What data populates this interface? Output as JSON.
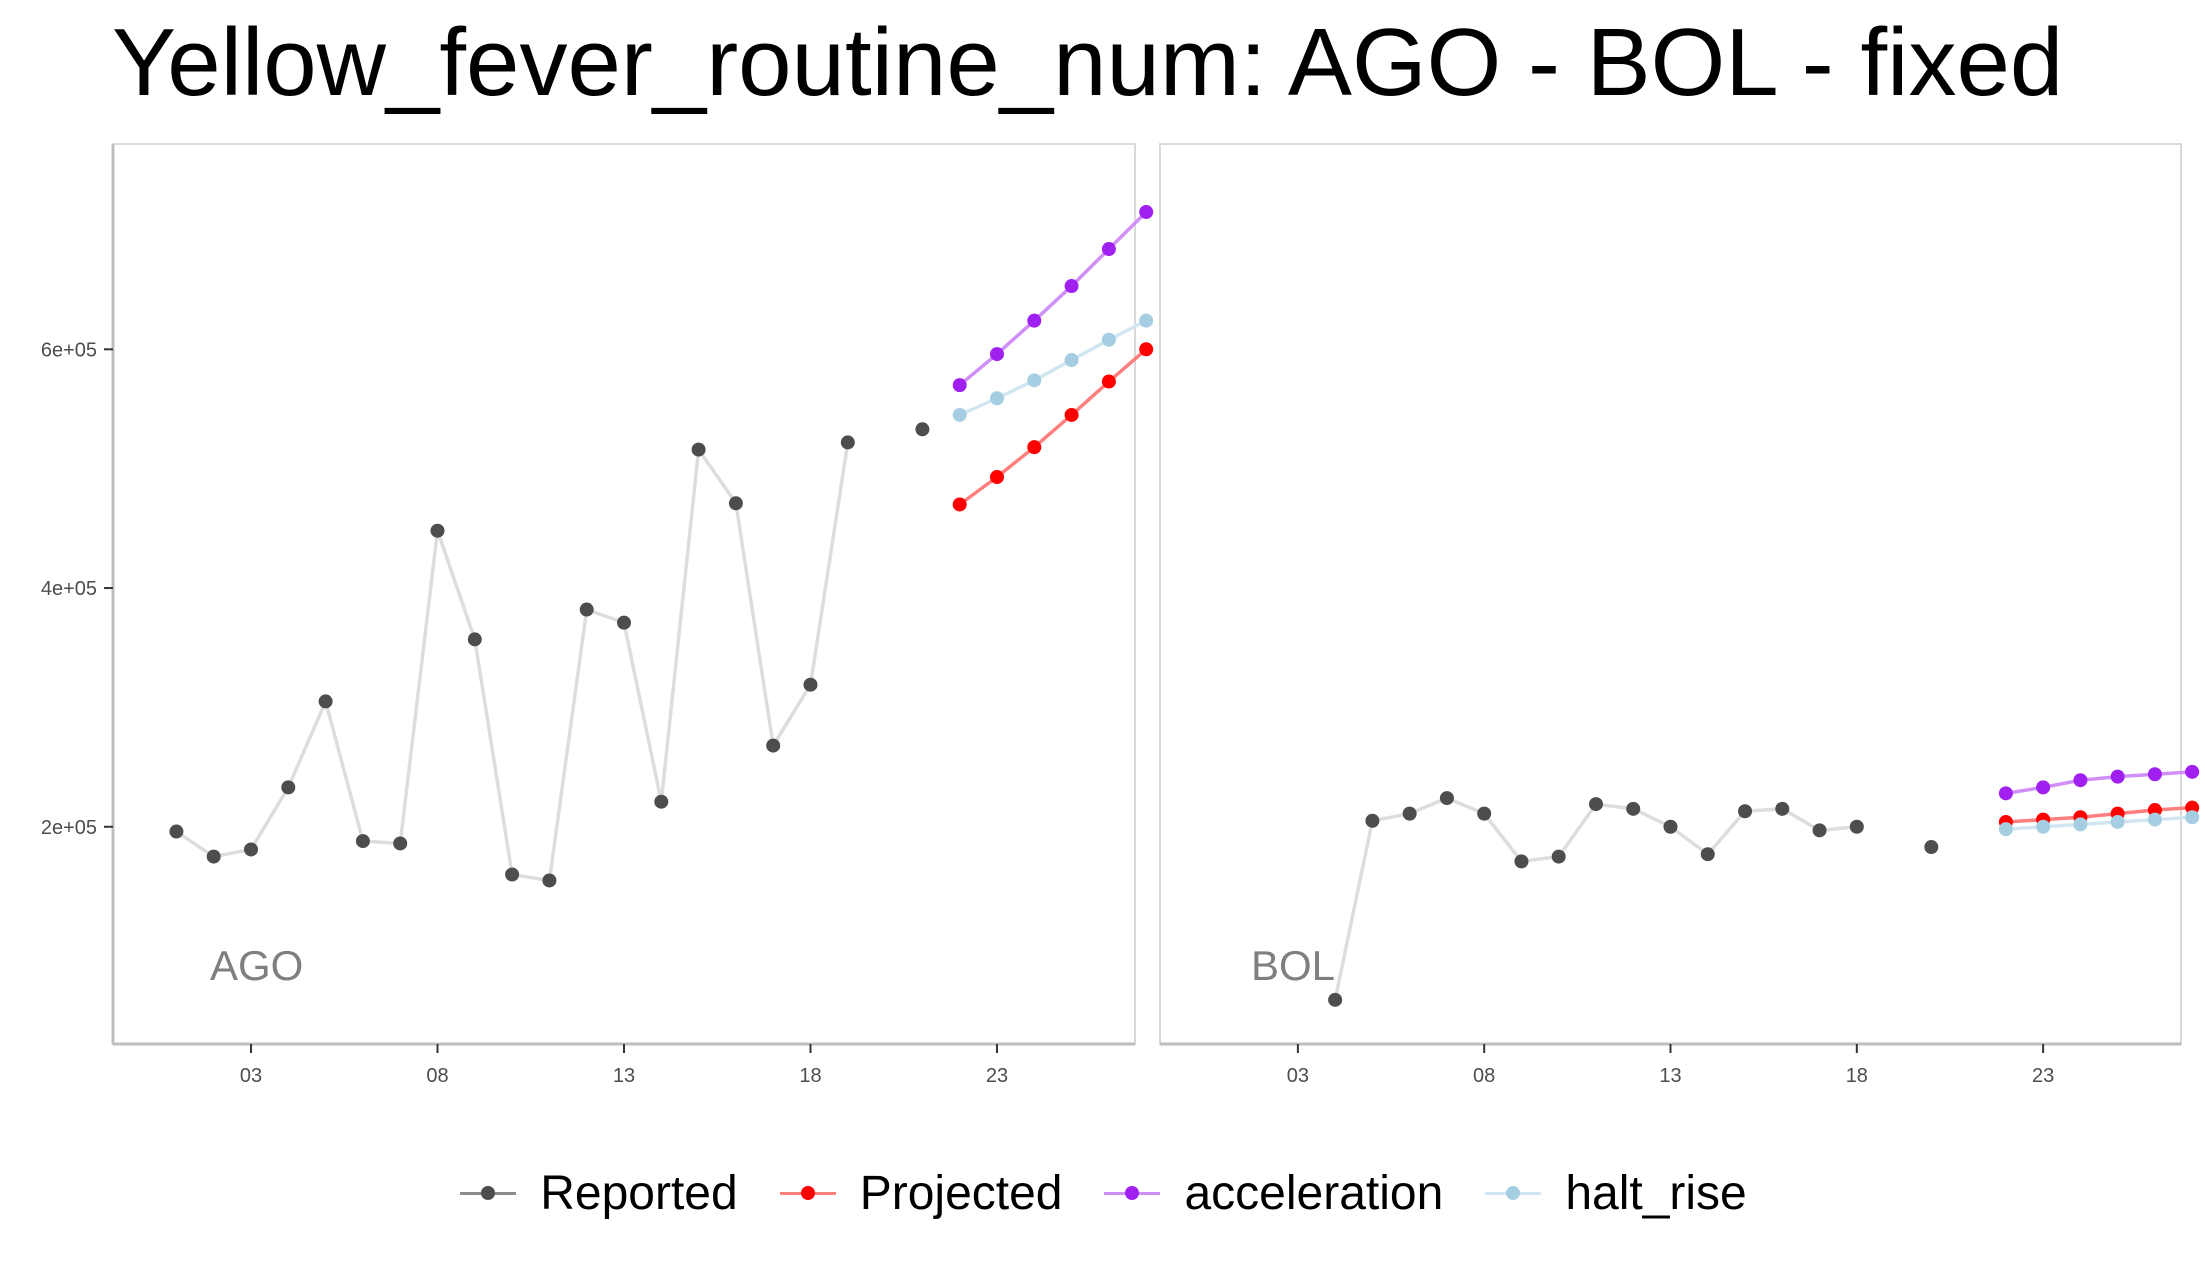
{
  "title": "Yellow_fever_routine_num: AGO - BOL - fixed",
  "colors": {
    "Reported": "#4d4d4d",
    "Reported_line": "#dddddd",
    "Projected": "#ff0000",
    "Projected_line": "#ff7f7f",
    "acceleration": "#a020f0",
    "acceleration_line": "#cf8ff7",
    "halt_rise": "#a6cee3",
    "halt_rise_line": "#d2e6f1"
  },
  "legend": [
    {
      "key": "Reported",
      "label": "Reported"
    },
    {
      "key": "Projected",
      "label": "Projected"
    },
    {
      "key": "acceleration",
      "label": "acceleration"
    },
    {
      "key": "halt_rise",
      "label": "halt_rise"
    }
  ],
  "chart_data": {
    "type": "line",
    "facet_scales": "shared",
    "xlim": [
      -0.7,
      26.7
    ],
    "ylim": [
      18000,
      772000
    ],
    "x_ticks": [
      3,
      8,
      13,
      18,
      23
    ],
    "x_tick_labels": [
      "03",
      "08",
      "13",
      "18",
      "23"
    ],
    "y_ticks": [
      200000,
      400000,
      600000
    ],
    "y_tick_labels": [
      "2e+05",
      "4e+05",
      "6e+05"
    ],
    "panels": [
      {
        "label": "AGO",
        "series": [
          {
            "name": "Reported",
            "x": [
              1,
              2,
              3,
              4,
              5,
              6,
              7,
              8,
              9,
              10,
              11,
              12,
              13,
              14,
              15,
              16,
              17,
              18,
              19,
              20,
              21
            ],
            "y": [
              196000,
              175000,
              181000,
              233000,
              305000,
              188000,
              186000,
              448000,
              357000,
              160000,
              155000,
              382000,
              371000,
              221000,
              516000,
              471000,
              268000,
              319000,
              522000,
              null,
              533000
            ]
          },
          {
            "name": "Projected",
            "x": [
              22,
              23,
              24,
              25,
              26,
              27
            ],
            "y": [
              470000,
              493000,
              518000,
              545000,
              573000,
              600000
            ]
          },
          {
            "name": "acceleration",
            "x": [
              22,
              23,
              24,
              25,
              26,
              27
            ],
            "y": [
              570000,
              596000,
              624000,
              653000,
              684000,
              715000
            ]
          },
          {
            "name": "halt_rise",
            "x": [
              22,
              23,
              24,
              25,
              26,
              27
            ],
            "y": [
              545000,
              559000,
              574000,
              591000,
              608000,
              624000
            ]
          }
        ]
      },
      {
        "label": "BOL",
        "series": [
          {
            "name": "Reported",
            "x": [
              4,
              5,
              6,
              7,
              8,
              9,
              10,
              11,
              12,
              13,
              14,
              15,
              16,
              17,
              18,
              19,
              20,
              21
            ],
            "y": [
              55000,
              205000,
              211000,
              224000,
              211000,
              171000,
              175000,
              219000,
              215000,
              200000,
              177000,
              213000,
              215000,
              197000,
              200000,
              null,
              183000,
              null
            ]
          },
          {
            "name": "Projected",
            "x": [
              22,
              23,
              24,
              25,
              26,
              27
            ],
            "y": [
              204000,
              206000,
              208000,
              211000,
              214000,
              216000
            ]
          },
          {
            "name": "acceleration",
            "x": [
              22,
              23,
              24,
              25,
              26,
              27
            ],
            "y": [
              228000,
              233000,
              239000,
              242000,
              244000,
              246000
            ]
          },
          {
            "name": "halt_rise",
            "x": [
              22,
              23,
              24,
              25,
              26,
              27
            ],
            "y": [
              198000,
              200000,
              202000,
              204000,
              206000,
              208000
            ]
          }
        ]
      }
    ]
  }
}
